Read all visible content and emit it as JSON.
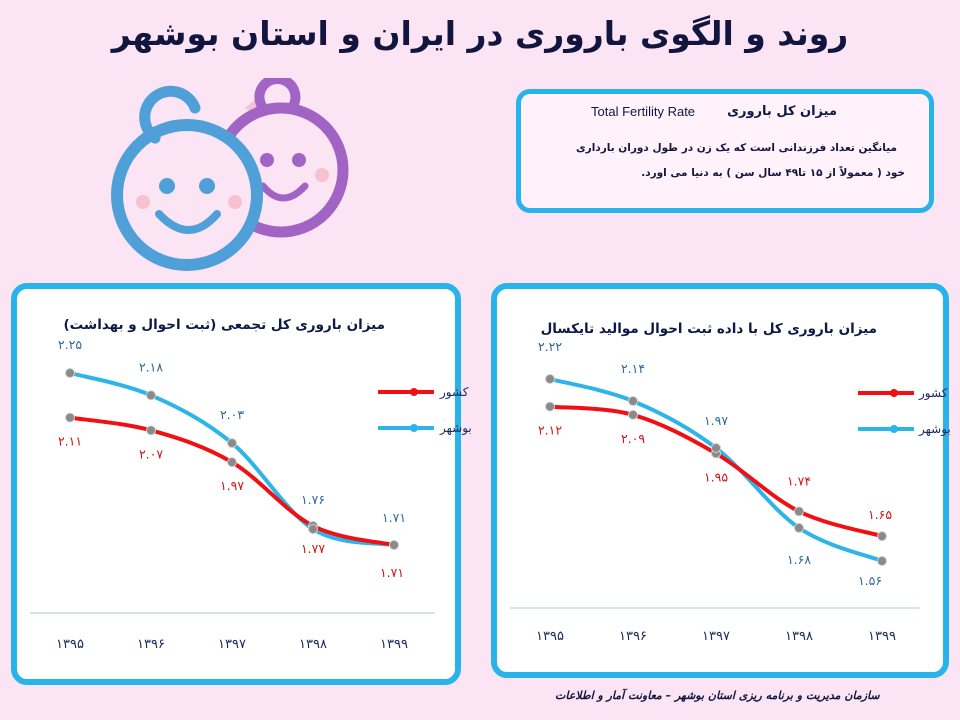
{
  "title": "روند و الگوی باروری در ایران و استان بوشهر",
  "definition": {
    "heading_fa": "میزان کل باروری",
    "heading_en": "Total Fertility Rate",
    "line1": "میانگین تعداد فرزندانی است که یک زن در طول دوران بارداری",
    "line2": "خود ( معمولاً از ۱۵ تا۴۹ سال سن ) به دنیا می اورد."
  },
  "footer": "سازمان مدیریت و برنامه ریزی استان بوشهر – معاونت آمار و اطلاعات",
  "colors": {
    "country": "#f20f13",
    "bushehr": "#2db5ea",
    "border": "#28b4ea",
    "marker": "#8a8a8a"
  },
  "chart_data": [
    {
      "type": "line",
      "title": "میزان باروری کل تجمعی (ثبت احوال و بهداشت)",
      "categories": [
        "۱۳۹۵",
        "۱۳۹۶",
        "۱۳۹۷",
        "۱۳۹۸",
        "۱۳۹۹"
      ],
      "series": [
        {
          "name": "کشور",
          "values": [
            2.11,
            2.07,
            1.97,
            1.77,
            1.71
          ],
          "labels": [
            "۲.۱۱",
            "۲.۰۷",
            "۱.۹۷",
            "۱.۷۷",
            "۱.۷۱"
          ]
        },
        {
          "name": "بوشهر",
          "values": [
            2.25,
            2.18,
            2.03,
            1.76,
            1.71
          ],
          "labels": [
            "۲.۲۵",
            "۲.۱۸",
            "۲.۰۳",
            "۱.۷۶",
            "۱.۷۱"
          ]
        }
      ],
      "legend": "right"
    },
    {
      "type": "line",
      "title": "میزان باروری کل با داده ثبت احوال موالید تایکسال",
      "categories": [
        "۱۳۹۵",
        "۱۳۹۶",
        "۱۳۹۷",
        "۱۳۹۸",
        "۱۳۹۹"
      ],
      "series": [
        {
          "name": "کشور",
          "values": [
            2.12,
            2.09,
            1.95,
            1.74,
            1.65
          ],
          "labels": [
            "۲.۱۲",
            "۲.۰۹",
            "۱.۹۵",
            "۱.۷۴",
            "۱.۶۵"
          ]
        },
        {
          "name": "بوشهر",
          "values": [
            2.22,
            2.14,
            1.97,
            1.68,
            1.56
          ],
          "labels": [
            "۲.۲۲",
            "۲.۱۴",
            "۱.۹۷",
            "۱.۶۸",
            "۱.۵۶"
          ]
        }
      ],
      "legend": "right"
    }
  ]
}
